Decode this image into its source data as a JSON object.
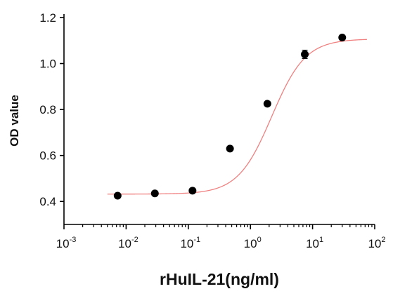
{
  "chart_data": {
    "type": "scatter",
    "title": "",
    "xlabel": "rHuIL-21(ng/ml)",
    "ylabel": "OD value",
    "x_scale": "log10",
    "xlim": [
      0.001,
      100
    ],
    "ylim": [
      0.3,
      1.2
    ],
    "x_ticks": [
      {
        "base": "10",
        "exp": "-3",
        "value": 0.001
      },
      {
        "base": "10",
        "exp": "-2",
        "value": 0.01
      },
      {
        "base": "10",
        "exp": "-1",
        "value": 0.1
      },
      {
        "base": "10",
        "exp": "0",
        "value": 1
      },
      {
        "base": "10",
        "exp": "1",
        "value": 10
      },
      {
        "base": "10",
        "exp": "2",
        "value": 100
      }
    ],
    "y_ticks": [
      {
        "label": "0.4",
        "value": 0.4
      },
      {
        "label": "0.6",
        "value": 0.6
      },
      {
        "label": "0.8",
        "value": 0.8
      },
      {
        "label": "1.0",
        "value": 1.0
      },
      {
        "label": "1.2",
        "value": 1.2
      }
    ],
    "series": [
      {
        "points": [
          {
            "x": 0.0073,
            "y": 0.425,
            "err": 0.008
          },
          {
            "x": 0.029,
            "y": 0.435,
            "err": 0.006
          },
          {
            "x": 0.117,
            "y": 0.447,
            "err": 0.006
          },
          {
            "x": 0.469,
            "y": 0.63,
            "err": 0.006
          },
          {
            "x": 1.875,
            "y": 0.825,
            "err": 0.008
          },
          {
            "x": 7.5,
            "y": 1.04,
            "err": 0.018
          },
          {
            "x": 30,
            "y": 1.113,
            "err": 0.008
          }
        ],
        "marker_color": "#000000"
      }
    ],
    "fit_curve": {
      "model": "4PL",
      "bottom": 0.432,
      "top": 1.107,
      "ec50": 2.2,
      "hill": 1.6,
      "color": "#f08080"
    },
    "grid": false
  }
}
